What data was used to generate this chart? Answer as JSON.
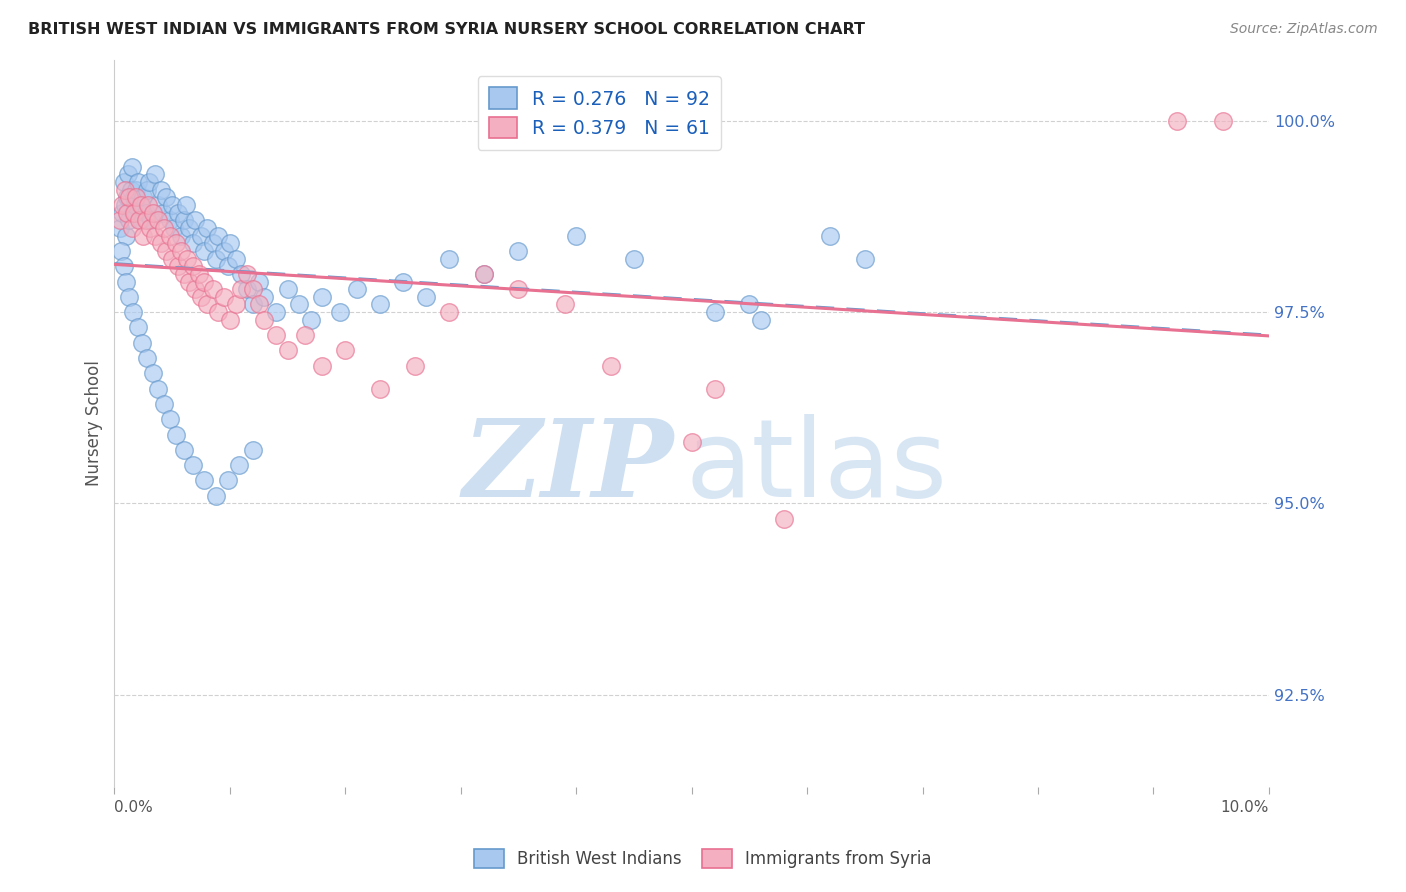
{
  "title": "BRITISH WEST INDIAN VS IMMIGRANTS FROM SYRIA NURSERY SCHOOL CORRELATION CHART",
  "source": "Source: ZipAtlas.com",
  "ylabel": "Nursery School",
  "yticks_labels": [
    "92.5%",
    "95.0%",
    "97.5%",
    "100.0%"
  ],
  "ytick_vals": [
    92.5,
    95.0,
    97.5,
    100.0
  ],
  "xmin": 0.0,
  "xmax": 10.0,
  "ymin": 91.3,
  "ymax": 100.8,
  "legend_label_blue": "R = 0.276   N = 92",
  "legend_label_pink": "R = 0.379   N = 61",
  "legend_label_bottom_blue": "British West Indians",
  "legend_label_bottom_pink": "Immigrants from Syria",
  "blue_fill": "#A8C8F0",
  "pink_fill": "#F4B0C0",
  "blue_edge": "#6699CC",
  "pink_edge": "#E87090",
  "line_blue_color": "#6699CC",
  "line_pink_color": "#E87090",
  "blue_line_style": "--",
  "pink_line_style": "-",
  "watermark_zip_color": "#C8DCF0",
  "watermark_atlas_color": "#C8DCF0",
  "ytick_color": "#4472C4",
  "grid_color": "#CCCCCC",
  "title_color": "#222222",
  "source_color": "#888888",
  "ylabel_color": "#555555",
  "xtick_label_left": "0.0%",
  "xtick_label_right": "10.0%",
  "blue_scatter_x": [
    0.05,
    0.07,
    0.08,
    0.09,
    0.1,
    0.11,
    0.12,
    0.13,
    0.14,
    0.15,
    0.16,
    0.17,
    0.18,
    0.19,
    0.2,
    0.22,
    0.23,
    0.25,
    0.27,
    0.28,
    0.3,
    0.32,
    0.35,
    0.38,
    0.4,
    0.42,
    0.45,
    0.48,
    0.5,
    0.52,
    0.55,
    0.58,
    0.6,
    0.62,
    0.65,
    0.68,
    0.7,
    0.75,
    0.78,
    0.8,
    0.85,
    0.88,
    0.9,
    0.95,
    0.98,
    1.0,
    1.05,
    1.1,
    1.15,
    1.2,
    1.25,
    1.3,
    1.4,
    1.5,
    1.6,
    1.7,
    1.8,
    1.95,
    2.1,
    2.3,
    2.5,
    2.7,
    2.9,
    3.2,
    3.5,
    4.0,
    4.5,
    5.2,
    5.5,
    5.6,
    6.2,
    6.5,
    0.06,
    0.08,
    0.1,
    0.13,
    0.16,
    0.2,
    0.24,
    0.28,
    0.33,
    0.38,
    0.43,
    0.48,
    0.53,
    0.6,
    0.68,
    0.78,
    0.88,
    0.98,
    1.08,
    1.2
  ],
  "blue_scatter_y": [
    98.6,
    98.8,
    99.2,
    98.9,
    98.5,
    99.0,
    99.3,
    98.7,
    99.1,
    99.4,
    98.8,
    99.0,
    98.9,
    99.1,
    99.2,
    98.9,
    98.7,
    99.0,
    98.8,
    99.1,
    99.2,
    98.7,
    99.3,
    98.9,
    99.1,
    98.8,
    99.0,
    98.7,
    98.9,
    98.6,
    98.8,
    98.5,
    98.7,
    98.9,
    98.6,
    98.4,
    98.7,
    98.5,
    98.3,
    98.6,
    98.4,
    98.2,
    98.5,
    98.3,
    98.1,
    98.4,
    98.2,
    98.0,
    97.8,
    97.6,
    97.9,
    97.7,
    97.5,
    97.8,
    97.6,
    97.4,
    97.7,
    97.5,
    97.8,
    97.6,
    97.9,
    97.7,
    98.2,
    98.0,
    98.3,
    98.5,
    98.2,
    97.5,
    97.6,
    97.4,
    98.5,
    98.2,
    98.3,
    98.1,
    97.9,
    97.7,
    97.5,
    97.3,
    97.1,
    96.9,
    96.7,
    96.5,
    96.3,
    96.1,
    95.9,
    95.7,
    95.5,
    95.3,
    95.1,
    95.3,
    95.5,
    95.7
  ],
  "pink_scatter_x": [
    0.05,
    0.07,
    0.09,
    0.11,
    0.13,
    0.15,
    0.17,
    0.19,
    0.21,
    0.23,
    0.25,
    0.27,
    0.29,
    0.31,
    0.33,
    0.35,
    0.38,
    0.4,
    0.43,
    0.45,
    0.48,
    0.5,
    0.53,
    0.55,
    0.58,
    0.6,
    0.63,
    0.65,
    0.68,
    0.7,
    0.73,
    0.75,
    0.78,
    0.8,
    0.85,
    0.9,
    0.95,
    1.0,
    1.05,
    1.1,
    1.15,
    1.2,
    1.25,
    1.3,
    1.4,
    1.5,
    1.65,
    1.8,
    2.0,
    2.3,
    2.6,
    2.9,
    3.2,
    3.5,
    3.9,
    4.3,
    5.0,
    5.2,
    5.8,
    9.2,
    9.6
  ],
  "pink_scatter_y": [
    98.7,
    98.9,
    99.1,
    98.8,
    99.0,
    98.6,
    98.8,
    99.0,
    98.7,
    98.9,
    98.5,
    98.7,
    98.9,
    98.6,
    98.8,
    98.5,
    98.7,
    98.4,
    98.6,
    98.3,
    98.5,
    98.2,
    98.4,
    98.1,
    98.3,
    98.0,
    98.2,
    97.9,
    98.1,
    97.8,
    98.0,
    97.7,
    97.9,
    97.6,
    97.8,
    97.5,
    97.7,
    97.4,
    97.6,
    97.8,
    98.0,
    97.8,
    97.6,
    97.4,
    97.2,
    97.0,
    97.2,
    96.8,
    97.0,
    96.5,
    96.8,
    97.5,
    98.0,
    97.8,
    97.6,
    96.8,
    95.8,
    96.5,
    94.8,
    100.0,
    100.0
  ]
}
